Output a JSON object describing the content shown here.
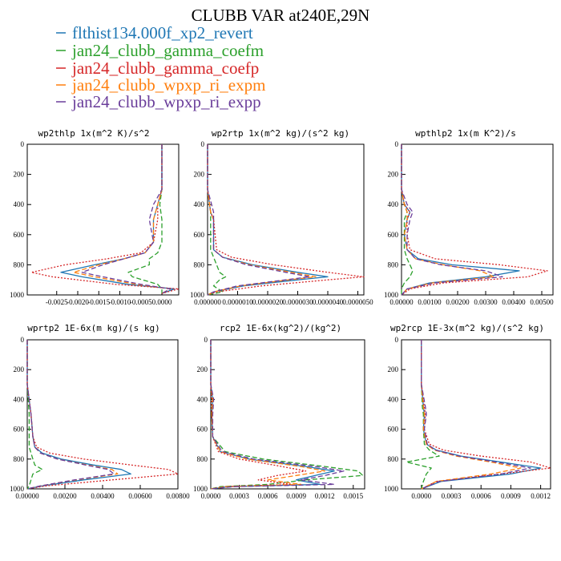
{
  "figure": {
    "title": "CLUBB VAR at240E,29N"
  },
  "legend": [
    {
      "label": "flthist134.000f_xp2_revert",
      "color": "#1f77b4"
    },
    {
      "label": "jan24_clubb_gamma_coefm",
      "color": "#2ca02c"
    },
    {
      "label": "jan24_clubb_gamma_coefp",
      "color": "#d62728"
    },
    {
      "label": "jan24_clubb_wpxp_ri_expm",
      "color": "#ff7f0e"
    },
    {
      "label": "jan24_clubb_wpxp_ri_expp",
      "color": "#6a3d9a"
    }
  ],
  "chart_data": [
    {
      "type": "line",
      "title": "wp2thlp  1x(m^2 K)/s^2",
      "ylim": [
        1000,
        0
      ],
      "xlim": [
        -0.0032,
        0.0004
      ],
      "yticks": [
        0,
        200,
        400,
        600,
        800,
        1000
      ],
      "xticks": [
        -0.0025,
        -0.002,
        -0.0015,
        -0.001,
        -0.0005,
        0.0
      ],
      "xtick_labels": [
        "-0.0025",
        "-0.0020",
        "-0.0015",
        "-0.0010",
        "-0.0005",
        "0.0000"
      ],
      "y": [
        0,
        300,
        400,
        500,
        650,
        720,
        760,
        800,
        850,
        880,
        930,
        960,
        990
      ],
      "series": [
        {
          "name": "flthist134.000f_xp2_revert",
          "color": "#1f77b4",
          "dash": "none",
          "x": [
            0.0,
            0.0,
            -0.0001,
            -0.0002,
            -0.0002,
            -0.0004,
            -0.0009,
            -0.0016,
            -0.0024,
            -0.0019,
            -0.0008,
            0.0003,
            0.0
          ]
        },
        {
          "name": "jan24_clubb_gamma_coefm",
          "color": "#2ca02c",
          "dash": "6,3",
          "x": [
            0.0,
            0.0,
            -5e-05,
            0.0,
            0.0,
            -0.0001,
            -0.0003,
            -0.0003,
            -0.0008,
            -0.0007,
            -0.0001,
            0.0,
            0.0
          ]
        },
        {
          "name": "jan24_clubb_gamma_coefp",
          "color": "#d62728",
          "dash": "2,2",
          "x": [
            0.0,
            0.0,
            -0.0001,
            -0.0001,
            -0.0002,
            -0.0005,
            -0.0013,
            -0.0023,
            -0.0031,
            -0.0026,
            -0.0011,
            0.0004,
            0.0
          ]
        },
        {
          "name": "jan24_clubb_wpxp_ri_expm",
          "color": "#ff7f0e",
          "dash": "6,3",
          "x": [
            0.0,
            0.0,
            -0.0001,
            -0.0002,
            -0.0002,
            -0.0004,
            -0.0009,
            -0.0015,
            -0.0021,
            -0.0016,
            -0.0006,
            0.0002,
            0.0
          ]
        },
        {
          "name": "jan24_clubb_wpxp_ri_expp",
          "color": "#6a3d9a",
          "dash": "6,3",
          "x": [
            0.0,
            0.0,
            -0.0002,
            -0.0003,
            -0.0002,
            -0.0004,
            -0.0009,
            -0.0014,
            -0.0019,
            -0.0014,
            -0.0005,
            0.0002,
            0.0
          ]
        }
      ]
    },
    {
      "type": "line",
      "title": "wp2rtp  1x(m^2 kg)/(s^2 kg)",
      "ylim": [
        1000,
        0
      ],
      "xlim": [
        0.0,
        5.2e-06
      ],
      "yticks": [
        0,
        200,
        400,
        600,
        800,
        1000
      ],
      "xticks": [
        0.0,
        1e-06,
        2e-06,
        3e-06,
        4e-06,
        5e-06
      ],
      "xtick_labels": [
        "0.000000",
        "0.0000010",
        "0.0000020",
        "0.0000030",
        "0.0000040",
        "0.0000050"
      ],
      "y": [
        0,
        300,
        450,
        500,
        700,
        750,
        800,
        850,
        880,
        900,
        940,
        980,
        1000
      ],
      "series": [
        {
          "name": "flthist134.000f_xp2_revert",
          "color": "#1f77b4",
          "dash": "none",
          "x": [
            0.0,
            0.0,
            1e-07,
            2e-07,
            2e-07,
            5e-07,
            1.5e-06,
            3e-06,
            4e-06,
            3e-06,
            1.2e-06,
            2e-07,
            0.0
          ]
        },
        {
          "name": "jan24_clubb_gamma_coefm",
          "color": "#2ca02c",
          "dash": "6,3",
          "x": [
            0.0,
            0.0,
            1e-07,
            1e-07,
            1e-07,
            2e-07,
            3e-07,
            4e-07,
            6e-07,
            4e-07,
            2e-07,
            5e-07,
            0.0
          ]
        },
        {
          "name": "jan24_clubb_gamma_coefp",
          "color": "#d62728",
          "dash": "2,2",
          "x": [
            0.0,
            0.0,
            1e-07,
            2e-07,
            3e-07,
            8e-07,
            2.2e-06,
            4e-06,
            5.2e-06,
            4e-06,
            1.8e-06,
            3e-07,
            0.0
          ]
        },
        {
          "name": "jan24_clubb_wpxp_ri_expm",
          "color": "#ff7f0e",
          "dash": "6,3",
          "x": [
            0.0,
            0.0,
            1e-07,
            2e-07,
            2e-07,
            5e-07,
            1.4e-06,
            2.8e-06,
            3.6e-06,
            2.7e-06,
            1.1e-06,
            2e-07,
            0.0
          ]
        },
        {
          "name": "jan24_clubb_wpxp_ri_expp",
          "color": "#6a3d9a",
          "dash": "6,3",
          "x": [
            0.0,
            0.0,
            2e-07,
            2e-07,
            2e-07,
            5e-07,
            1.3e-06,
            2.6e-06,
            3.4e-06,
            2.6e-06,
            1e-06,
            2e-07,
            0.0
          ]
        }
      ]
    },
    {
      "type": "line",
      "title": "wpthlp2  1x(m K^2)/s",
      "ylim": [
        1000,
        0
      ],
      "xlim": [
        0.0,
        0.0054
      ],
      "yticks": [
        0,
        200,
        400,
        600,
        800,
        1000
      ],
      "xticks": [
        0.0,
        0.001,
        0.002,
        0.003,
        0.004,
        0.005
      ],
      "xtick_labels": [
        "0.00000",
        "0.00100",
        "0.00200",
        "0.00300",
        "0.00400",
        "0.00500"
      ],
      "y": [
        0,
        300,
        400,
        450,
        500,
        600,
        700,
        760,
        800,
        840,
        880,
        920,
        960,
        1000
      ],
      "series": [
        {
          "name": "flthist134.000f_xp2_revert",
          "color": "#1f77b4",
          "dash": "none",
          "x": [
            0.0,
            0.0,
            0.0001,
            0.0003,
            0.0002,
            0.0001,
            0.0002,
            0.0006,
            0.0018,
            0.0042,
            0.003,
            0.001,
            0.0002,
            0.0
          ]
        },
        {
          "name": "jan24_clubb_gamma_coefm",
          "color": "#2ca02c",
          "dash": "6,3",
          "x": [
            0.0,
            0.0,
            0.0001,
            0.0002,
            0.0001,
            0.0001,
            0.0001,
            0.0002,
            0.0003,
            0.0004,
            0.0003,
            0.0001,
            0.0,
            0.0
          ]
        },
        {
          "name": "jan24_clubb_gamma_coefp",
          "color": "#d62728",
          "dash": "2,2",
          "x": [
            0.0,
            0.0,
            0.0001,
            0.0003,
            0.0002,
            0.0002,
            0.0003,
            0.0012,
            0.0035,
            0.0052,
            0.0045,
            0.0015,
            0.0003,
            0.0
          ]
        },
        {
          "name": "jan24_clubb_wpxp_ri_expm",
          "color": "#ff7f0e",
          "dash": "6,3",
          "x": [
            0.0,
            0.0,
            0.0001,
            0.0002,
            0.0002,
            0.0001,
            0.0002,
            0.0005,
            0.0015,
            0.0028,
            0.0033,
            0.0011,
            0.0002,
            0.0
          ]
        },
        {
          "name": "jan24_clubb_wpxp_ri_expp",
          "color": "#6a3d9a",
          "dash": "6,3",
          "x": [
            0.0,
            0.0,
            0.0002,
            0.0004,
            0.0003,
            0.0002,
            0.0002,
            0.0005,
            0.0014,
            0.003,
            0.0036,
            0.0012,
            0.0002,
            0.0
          ]
        }
      ]
    },
    {
      "type": "line",
      "title": "wprtp2  1E-6x(m kg)/(s kg)",
      "ylim": [
        1000,
        0
      ],
      "xlim": [
        0.0,
        0.008
      ],
      "yticks": [
        0,
        200,
        400,
        600,
        800,
        1000
      ],
      "xticks": [
        0.0,
        0.002,
        0.004,
        0.006,
        0.008
      ],
      "xtick_labels": [
        "0.00000",
        "0.00200",
        "0.00400",
        "0.00600",
        "0.00800"
      ],
      "y": [
        0,
        300,
        500,
        650,
        720,
        760,
        800,
        840,
        870,
        900,
        940,
        980,
        1000
      ],
      "series": [
        {
          "name": "flthist134.000f_xp2_revert",
          "color": "#1f77b4",
          "dash": "none",
          "x": [
            0.0,
            0.0,
            0.0002,
            0.0003,
            0.0004,
            0.0008,
            0.0018,
            0.0035,
            0.005,
            0.0055,
            0.003,
            0.0008,
            0.0
          ]
        },
        {
          "name": "jan24_clubb_gamma_coefm",
          "color": "#2ca02c",
          "dash": "6,3",
          "x": [
            0.0,
            0.0,
            0.0001,
            0.0001,
            0.0001,
            0.0002,
            0.0003,
            0.0004,
            0.0008,
            0.0003,
            0.0002,
            0.0001,
            0.0
          ]
        },
        {
          "name": "jan24_clubb_gamma_coefp",
          "color": "#d62728",
          "dash": "2,2",
          "x": [
            0.0,
            0.0,
            0.0002,
            0.0003,
            0.0005,
            0.0012,
            0.003,
            0.0055,
            0.0075,
            0.008,
            0.0045,
            0.001,
            0.0
          ]
        },
        {
          "name": "jan24_clubb_wpxp_ri_expm",
          "color": "#ff7f0e",
          "dash": "6,3",
          "x": [
            0.0,
            0.0,
            0.0002,
            0.0003,
            0.0004,
            0.0007,
            0.0016,
            0.0032,
            0.0045,
            0.0048,
            0.0026,
            0.0007,
            0.0
          ]
        },
        {
          "name": "jan24_clubb_wpxp_ri_expp",
          "color": "#6a3d9a",
          "dash": "6,3",
          "x": [
            0.0,
            0.0,
            0.0002,
            0.0003,
            0.0004,
            0.0007,
            0.0016,
            0.0031,
            0.0043,
            0.0046,
            0.0025,
            0.0007,
            0.0
          ]
        }
      ]
    },
    {
      "type": "line",
      "title": "rcp2  1E-6x(kg^2)/(kg^2)",
      "ylim": [
        1000,
        0
      ],
      "xlim": [
        0.0,
        0.00162
      ],
      "yticks": [
        0,
        200,
        400,
        600,
        800,
        1000
      ],
      "xticks": [
        0.0,
        0.0003,
        0.0006,
        0.0009,
        0.0012,
        0.0015
      ],
      "xtick_labels": [
        "0.0000",
        "0.0003",
        "0.0006",
        "0.0009",
        "0.0012",
        "0.0015"
      ],
      "y": [
        0,
        300,
        400,
        500,
        650,
        750,
        800,
        850,
        880,
        910,
        940,
        970,
        985,
        1000
      ],
      "series": [
        {
          "name": "flthist134.000f_xp2_revert",
          "color": "#1f77b4",
          "dash": "none",
          "x": [
            0.0,
            0.0,
            2e-05,
            1e-05,
            2e-05,
            0.0001,
            0.0004,
            0.001,
            0.0013,
            0.0011,
            0.0009,
            0.00115,
            0.0002,
            0.0
          ]
        },
        {
          "name": "jan24_clubb_gamma_coefm",
          "color": "#2ca02c",
          "dash": "6,3",
          "x": [
            0.0,
            0.0,
            2e-05,
            1e-05,
            2e-05,
            0.00015,
            0.00055,
            0.0012,
            0.00155,
            0.0016,
            0.001,
            0.0006,
            0.0001,
            0.0
          ]
        },
        {
          "name": "jan24_clubb_gamma_coefp",
          "color": "#d62728",
          "dash": "2,2",
          "x": [
            0.0,
            0.0,
            1e-05,
            1e-05,
            2e-05,
            8e-05,
            0.0003,
            0.00075,
            0.001,
            0.0007,
            0.0005,
            0.00085,
            0.00015,
            0.0
          ]
        },
        {
          "name": "jan24_clubb_wpxp_ri_expm",
          "color": "#ff7f0e",
          "dash": "6,3",
          "x": [
            0.0,
            0.0,
            2e-05,
            1e-05,
            2e-05,
            0.0001,
            0.00038,
            0.00095,
            0.0012,
            0.0009,
            0.0006,
            0.00095,
            0.00018,
            0.0
          ]
        },
        {
          "name": "jan24_clubb_wpxp_ri_expp",
          "color": "#6a3d9a",
          "dash": "6,3",
          "x": [
            0.0,
            0.0,
            3e-05,
            2e-05,
            2e-05,
            0.00012,
            0.00045,
            0.0011,
            0.0014,
            0.0012,
            0.00095,
            0.0013,
            0.00025,
            0.0
          ]
        }
      ]
    },
    {
      "type": "line",
      "title": "wp2rcp  1E-3x(m^2 kg)/(s^2 kg)",
      "ylim": [
        1000,
        0
      ],
      "xlim": [
        -0.0002,
        0.0013
      ],
      "yticks": [
        0,
        200,
        400,
        600,
        800,
        1000
      ],
      "xticks": [
        0.0,
        0.0003,
        0.0006,
        0.0009,
        0.0012
      ],
      "xtick_labels": [
        "0.0000",
        "0.0003",
        "0.0006",
        "0.0009",
        "0.0012"
      ],
      "y": [
        0,
        300,
        450,
        500,
        600,
        700,
        740,
        780,
        820,
        860,
        900,
        950,
        1000
      ],
      "series": [
        {
          "name": "flthist134.000f_xp2_revert",
          "color": "#1f77b4",
          "dash": "none",
          "x": [
            0.0,
            0.0,
            2e-05,
            3e-05,
            2e-05,
            5e-05,
            0.00015,
            0.0004,
            0.0008,
            0.0012,
            0.0009,
            0.0002,
            0.0
          ]
        },
        {
          "name": "jan24_clubb_gamma_coefm",
          "color": "#2ca02c",
          "dash": "6,3",
          "x": [
            0.0,
            0.0,
            1e-05,
            2e-05,
            2e-05,
            3e-05,
            8e-05,
            0.00018,
            -0.00015,
            0.0001,
            5e-05,
            2e-05,
            0.0
          ]
        },
        {
          "name": "jan24_clubb_gamma_coefp",
          "color": "#d62728",
          "dash": "2,2",
          "x": [
            0.0,
            0.0,
            3e-05,
            4e-05,
            3e-05,
            8e-05,
            0.00022,
            0.0006,
            0.0011,
            0.0013,
            0.0008,
            0.00015,
            0.0
          ]
        },
        {
          "name": "jan24_clubb_wpxp_ri_expm",
          "color": "#ff7f0e",
          "dash": "6,3",
          "x": [
            0.0,
            0.0,
            2e-05,
            3e-05,
            2e-05,
            5e-05,
            0.00013,
            0.00035,
            0.0007,
            0.001,
            0.0007,
            0.00015,
            0.0
          ]
        },
        {
          "name": "jan24_clubb_wpxp_ri_expp",
          "color": "#6a3d9a",
          "dash": "6,3",
          "x": [
            0.0,
            0.0,
            4e-05,
            5e-05,
            3e-05,
            6e-05,
            0.00014,
            0.00038,
            0.00075,
            0.0011,
            0.0008,
            0.00018,
            0.0
          ]
        }
      ]
    }
  ]
}
